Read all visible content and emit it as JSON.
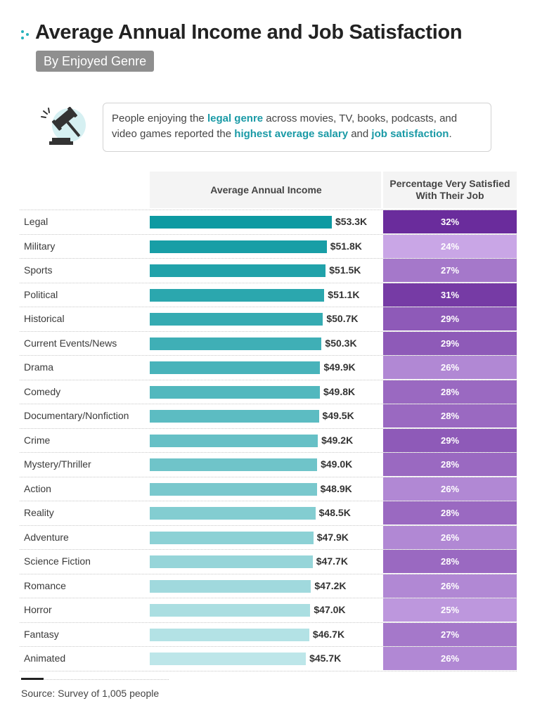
{
  "title": "Average Annual Income and Job Satisfaction",
  "subtitle": "By Enjoyed Genre",
  "callout": {
    "t1": "People enjoying the ",
    "h1": "legal genre",
    "t2": " across movies, TV, books, podcasts, and video games reported the ",
    "h2": "highest average salary",
    "t3": " and ",
    "h3": "job satisfaction",
    "t4": "."
  },
  "columns": {
    "income": "Average Annual Income",
    "satisfaction": "Percentage Very Satisfied With Their Job"
  },
  "source": "Source: Survey of 1,005 people",
  "colors": {
    "accent": "#27b3bd",
    "highlight_text": "#1a9aa6",
    "bar_dark": "#0e9aa2",
    "bar_light": "#bde6e9",
    "sat_low": "#c9a6e6",
    "sat_high": "#6a2c9c"
  },
  "icons": [
    "gavel-icon",
    "title-dots-icon"
  ],
  "chart_data": {
    "type": "table",
    "categories": [
      "Legal",
      "Military",
      "Sports",
      "Political",
      "Historical",
      "Current Events/News",
      "Drama",
      "Comedy",
      "Documentary/Nonfiction",
      "Crime",
      "Mystery/Thriller",
      "Action",
      "Reality",
      "Adventure",
      "Science Fiction",
      "Romance",
      "Horror",
      "Fantasy",
      "Animated"
    ],
    "series": [
      {
        "values": [
          53.3,
          51.8,
          51.5,
          51.1,
          50.7,
          50.3,
          49.9,
          49.8,
          49.5,
          49.2,
          49.0,
          48.9,
          48.5,
          47.9,
          47.7,
          47.2,
          47.0,
          46.7,
          45.7
        ],
        "labels": [
          "$53.3K",
          "$51.8K",
          "$51.5K",
          "$51.1K",
          "$50.7K",
          "$50.3K",
          "$49.9K",
          "$49.8K",
          "$49.5K",
          "$49.2K",
          "$49.0K",
          "$48.9K",
          "$48.5K",
          "$47.9K",
          "$47.7K",
          "$47.2K",
          "$47.0K",
          "$46.7K",
          "$45.7K"
        ]
      },
      {
        "values": [
          32,
          24,
          27,
          31,
          29,
          29,
          26,
          28,
          28,
          29,
          28,
          26,
          28,
          26,
          28,
          26,
          25,
          27,
          26
        ],
        "labels": [
          "32%",
          "24%",
          "27%",
          "31%",
          "29%",
          "29%",
          "26%",
          "28%",
          "28%",
          "29%",
          "28%",
          "26%",
          "28%",
          "26%",
          "28%",
          "26%",
          "25%",
          "27%",
          "26%"
        ]
      }
    ]
  }
}
